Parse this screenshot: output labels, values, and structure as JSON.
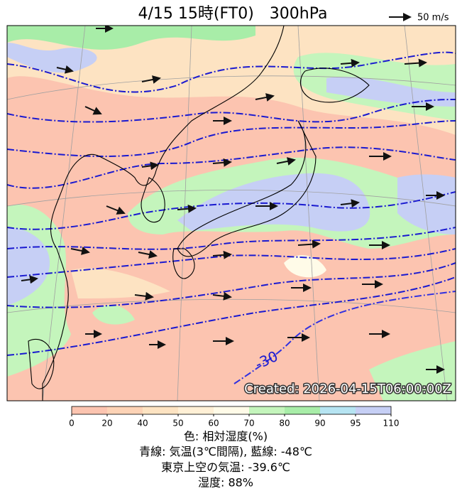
{
  "header": {
    "title": "4/15 15時(FT0)　300hPa",
    "wind_legend": "50 m/s"
  },
  "map": {
    "contour_label": "-30",
    "created": "Created: 2026-04-15T06:00:00Z"
  },
  "colorbar": {
    "ticks": [
      0,
      20,
      40,
      50,
      60,
      70,
      80,
      90,
      95,
      110
    ],
    "colors": [
      "#fcc4b0",
      "#fdd3b6",
      "#fde3c2",
      "#fff0d6",
      "#fffbe8",
      "#c4f5bc",
      "#a8eda8",
      "#b6e4f2",
      "#c6cff5"
    ]
  },
  "caption": [
    "色: 相対湿度(%)",
    "青線: 気温(3℃間隔), 藍線: -48℃",
    "東京上空の気温: -39.6℃",
    "湿度: 88%"
  ]
}
